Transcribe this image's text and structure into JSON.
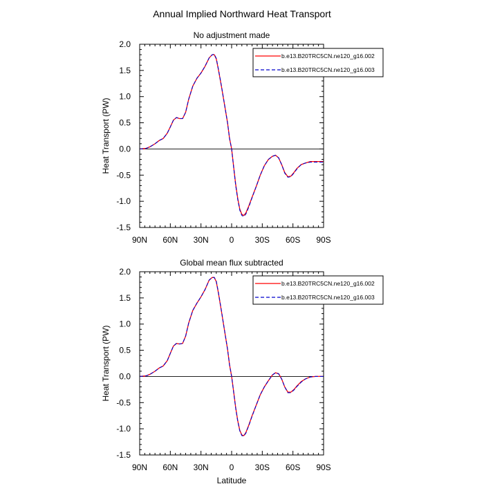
{
  "title": "Annual Implied Northward Heat Transport",
  "colors": {
    "series1": "#ff0000",
    "series2": "#0000cc",
    "axis": "#000000"
  },
  "chart_data": [
    {
      "type": "line",
      "subtitle": "No adjustment made",
      "xlabel": "",
      "ylabel": "Heat Transport (PW)",
      "xlim": [
        "90N",
        "90S"
      ],
      "ylim": [
        -1.5,
        2.0
      ],
      "x_ticks": [
        "90N",
        "60N",
        "30N",
        "0",
        "30S",
        "60S",
        "90S"
      ],
      "y_ticks": [
        "2.0",
        "1.5",
        "1.0",
        "0.5",
        "0.0",
        "-0.5",
        "-1.0",
        "-1.5"
      ],
      "legend_position": "top-right",
      "zero_line": true,
      "x": [
        90,
        84,
        80,
        75,
        71,
        67,
        63,
        60,
        57,
        54,
        51,
        48,
        45,
        42,
        38,
        34,
        30,
        26,
        22,
        19,
        17,
        15,
        13,
        10,
        7,
        4,
        2,
        0,
        -2,
        -4,
        -6,
        -8,
        -10,
        -12,
        -14,
        -17,
        -20,
        -24,
        -28,
        -32,
        -36,
        -40,
        -43,
        -46,
        -49,
        -52,
        -55,
        -58,
        -61,
        -64,
        -68,
        -72,
        -77,
        -82,
        -86,
        -90
      ],
      "series": [
        {
          "name": "b.e13.B20TRC5CN.ne120_g16.002",
          "style": "solid",
          "values": [
            0.0,
            0.01,
            0.04,
            0.1,
            0.16,
            0.2,
            0.3,
            0.42,
            0.55,
            0.6,
            0.58,
            0.58,
            0.7,
            0.95,
            1.2,
            1.35,
            1.45,
            1.58,
            1.74,
            1.8,
            1.8,
            1.72,
            1.52,
            1.2,
            0.85,
            0.5,
            0.2,
            0.0,
            -0.35,
            -0.68,
            -0.95,
            -1.15,
            -1.25,
            -1.27,
            -1.22,
            -1.08,
            -0.92,
            -0.72,
            -0.5,
            -0.32,
            -0.2,
            -0.14,
            -0.12,
            -0.17,
            -0.3,
            -0.45,
            -0.53,
            -0.52,
            -0.45,
            -0.37,
            -0.3,
            -0.27,
            -0.24,
            -0.24,
            -0.24,
            -0.24
          ]
        },
        {
          "name": "b.e13.B20TRC5CN.ne120_g16.003",
          "style": "dashed",
          "values": [
            0.0,
            0.01,
            0.04,
            0.1,
            0.16,
            0.2,
            0.3,
            0.42,
            0.55,
            0.6,
            0.58,
            0.58,
            0.7,
            0.95,
            1.2,
            1.35,
            1.45,
            1.58,
            1.74,
            1.8,
            1.81,
            1.73,
            1.53,
            1.21,
            0.85,
            0.5,
            0.2,
            0.0,
            -0.36,
            -0.7,
            -0.97,
            -1.17,
            -1.27,
            -1.29,
            -1.24,
            -1.1,
            -0.93,
            -0.72,
            -0.5,
            -0.32,
            -0.2,
            -0.14,
            -0.12,
            -0.17,
            -0.3,
            -0.46,
            -0.54,
            -0.53,
            -0.46,
            -0.38,
            -0.3,
            -0.27,
            -0.25,
            -0.25,
            -0.25,
            -0.25
          ]
        }
      ]
    },
    {
      "type": "line",
      "subtitle": "Global mean flux subtracted",
      "xlabel": "Latitude",
      "ylabel": "Heat Transport (PW)",
      "xlim": [
        "90N",
        "90S"
      ],
      "ylim": [
        -1.5,
        2.0
      ],
      "x_ticks": [
        "90N",
        "60N",
        "30N",
        "0",
        "30S",
        "60S",
        "90S"
      ],
      "y_ticks": [
        "2.0",
        "1.5",
        "1.0",
        "0.5",
        "0.0",
        "-0.5",
        "-1.0",
        "-1.5"
      ],
      "legend_position": "top-right",
      "zero_line": true,
      "x": [
        90,
        84,
        80,
        75,
        71,
        67,
        63,
        60,
        57,
        54,
        51,
        48,
        45,
        42,
        38,
        34,
        30,
        26,
        22,
        19,
        17,
        15,
        13,
        10,
        7,
        4,
        2,
        0,
        -2,
        -4,
        -6,
        -8,
        -10,
        -12,
        -14,
        -17,
        -20,
        -24,
        -28,
        -32,
        -36,
        -40,
        -43,
        -46,
        -49,
        -52,
        -55,
        -58,
        -61,
        -64,
        -68,
        -72,
        -77,
        -82,
        -86,
        -90
      ],
      "series": [
        {
          "name": "b.e13.B20TRC5CN.ne120_g16.002",
          "style": "solid",
          "values": [
            0.0,
            0.01,
            0.04,
            0.1,
            0.16,
            0.2,
            0.3,
            0.44,
            0.58,
            0.63,
            0.62,
            0.63,
            0.77,
            1.02,
            1.26,
            1.4,
            1.52,
            1.66,
            1.84,
            1.89,
            1.89,
            1.81,
            1.6,
            1.25,
            0.88,
            0.52,
            0.22,
            0.0,
            -0.3,
            -0.6,
            -0.85,
            -1.03,
            -1.12,
            -1.13,
            -1.07,
            -0.92,
            -0.75,
            -0.55,
            -0.35,
            -0.2,
            -0.08,
            0.03,
            0.07,
            0.05,
            -0.05,
            -0.2,
            -0.3,
            -0.3,
            -0.25,
            -0.18,
            -0.1,
            -0.05,
            -0.01,
            0.0,
            0.0,
            0.0
          ]
        },
        {
          "name": "b.e13.B20TRC5CN.ne120_g16.003",
          "style": "dashed",
          "values": [
            0.0,
            0.01,
            0.04,
            0.1,
            0.16,
            0.2,
            0.3,
            0.44,
            0.58,
            0.63,
            0.62,
            0.63,
            0.77,
            1.02,
            1.26,
            1.4,
            1.52,
            1.66,
            1.84,
            1.89,
            1.89,
            1.82,
            1.61,
            1.26,
            0.88,
            0.52,
            0.22,
            0.0,
            -0.31,
            -0.61,
            -0.86,
            -1.04,
            -1.13,
            -1.14,
            -1.08,
            -0.93,
            -0.76,
            -0.55,
            -0.35,
            -0.2,
            -0.08,
            0.03,
            0.07,
            0.05,
            -0.05,
            -0.2,
            -0.31,
            -0.31,
            -0.26,
            -0.19,
            -0.11,
            -0.05,
            -0.01,
            0.0,
            0.0,
            0.0
          ]
        }
      ]
    }
  ]
}
